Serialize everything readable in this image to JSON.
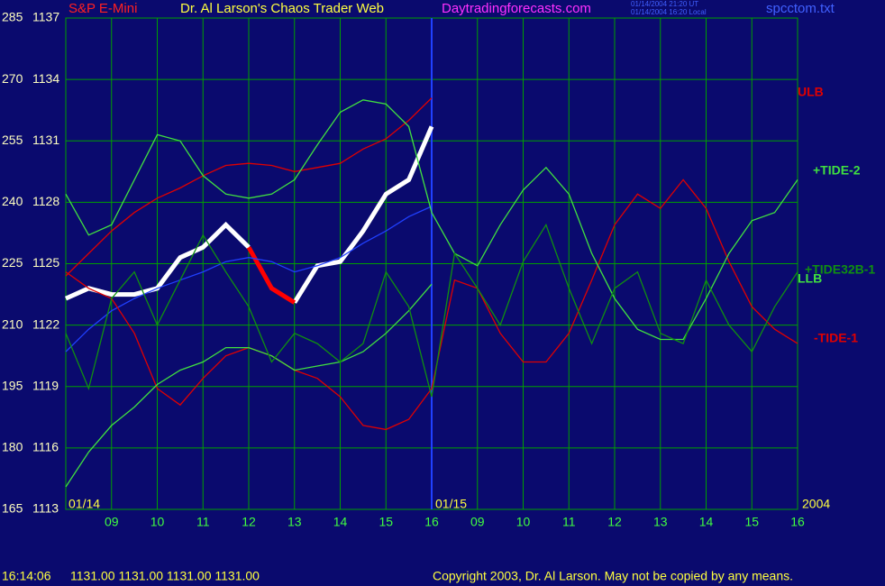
{
  "header": {
    "symbol": "S&P E-Mini",
    "title": "Dr. Al Larson's Chaos Trader Web",
    "site": "Daytradingforecasts.com",
    "time_ut": "01/14/2004 21:20 UT",
    "time_local": "01/14/2004 16:20 Local",
    "file": "spcctom.txt"
  },
  "chart_data": {
    "type": "line",
    "x": [
      0,
      0.5,
      1,
      1.5,
      2,
      2.5,
      3,
      3.5,
      4,
      4.5,
      5,
      5.5,
      6,
      6.5,
      7,
      7.5,
      8,
      8.5,
      9,
      9.5,
      10,
      10.5,
      11,
      11.5,
      12,
      12.5,
      13,
      13.5,
      14,
      14.5,
      15,
      15.5,
      16
    ],
    "series": [
      {
        "color": "#ffffff",
        "values": [
          1123.3,
          1123.8,
          1123.5,
          1123.5,
          1123.8,
          1125.3,
          1125.8,
          1126.9,
          1125.8,
          null,
          1123.1,
          1124.9,
          1125.1,
          1126.6,
          1128.4,
          1129.1,
          1131.7,
          null,
          null,
          null,
          null,
          null,
          null,
          null,
          null,
          null,
          null,
          null,
          null,
          null,
          null,
          null,
          null
        ]
      },
      {
        "color": "#ff0000",
        "values": [
          null,
          null,
          null,
          null,
          null,
          null,
          null,
          null,
          1125.8,
          1123.8,
          1123.1,
          null,
          null,
          null,
          null,
          null,
          null,
          null,
          null,
          null,
          null,
          null,
          null,
          null,
          null,
          null,
          null,
          null,
          null,
          null,
          null,
          null,
          null
        ]
      },
      {
        "color": "#2040ff",
        "values": [
          1120.7,
          1121.8,
          1122.7,
          1123.3,
          1123.8,
          1124.2,
          1124.6,
          1125.1,
          1125.3,
          1125.1,
          1124.6,
          1124.9,
          1125.3,
          1126.0,
          1126.6,
          1127.3,
          1127.8,
          null,
          null,
          null,
          null,
          null,
          null,
          null,
          null,
          null,
          null,
          null,
          null,
          null,
          null,
          null,
          null
        ]
      },
      {
        "name": "ULB",
        "color": "#e00000",
        "values": [
          1124.4,
          1125.5,
          1126.6,
          1127.5,
          1128.2,
          1128.7,
          1129.3,
          1129.8,
          1129.9,
          1129.8,
          1129.5,
          1129.7,
          1129.9,
          1130.6,
          1131.1,
          1132.0,
          1133.1,
          null,
          null,
          null,
          null,
          null,
          null,
          null,
          null,
          null,
          null,
          null,
          null,
          null,
          null,
          null,
          null
        ]
      },
      {
        "name": "-TIDE-1",
        "color": "#e00000",
        "values": [
          1124.6,
          1123.8,
          1123.3,
          1121.6,
          1118.9,
          1118.1,
          1119.4,
          1120.5,
          1120.9,
          1120.5,
          1119.8,
          1119.4,
          1118.5,
          1117.1,
          1116.9,
          1117.4,
          1118.9,
          1124.2,
          1123.8,
          1121.6,
          1120.2,
          1120.2,
          1121.6,
          1124.2,
          1126.9,
          1128.4,
          1127.7,
          1129.1,
          1127.7,
          1125.1,
          1122.9,
          1121.8,
          1121.1
        ]
      },
      {
        "name": "+TIDE-2",
        "color": "#40e040",
        "values": [
          1128.4,
          1126.4,
          1126.9,
          1129.1,
          1131.3,
          1131.0,
          1129.3,
          1128.4,
          1128.2,
          1128.4,
          1129.1,
          1130.8,
          1132.4,
          1133.0,
          1132.8,
          1131.7,
          1127.5,
          1125.5,
          1124.9,
          1126.9,
          1128.6,
          1129.7,
          1128.4,
          1125.5,
          1123.3,
          1121.8,
          1121.3,
          1121.3,
          1123.3,
          1125.5,
          1127.1,
          1127.5,
          1129.1
        ]
      },
      {
        "name": "LLB",
        "color": "#40e040",
        "values": [
          1114.1,
          1115.8,
          1117.1,
          1118.0,
          1119.1,
          1119.8,
          1120.2,
          1120.9,
          1120.9,
          1120.5,
          1119.8,
          1120.0,
          1120.2,
          1120.7,
          1121.6,
          1122.7,
          1124.0,
          null,
          null,
          null,
          null,
          null,
          null,
          null,
          null,
          null,
          null,
          null,
          null,
          null,
          null,
          null,
          null
        ]
      },
      {
        "name": "+TIDE32B-1",
        "color": "#109010",
        "values": [
          1121.6,
          1118.9,
          1123.3,
          1124.6,
          1122.0,
          1124.2,
          1126.4,
          1124.6,
          1122.9,
          1120.2,
          1121.6,
          1121.1,
          1120.2,
          1121.1,
          1124.6,
          1122.9,
          1118.5,
          1125.5,
          1123.8,
          1122.0,
          1125.1,
          1126.9,
          1123.8,
          1121.1,
          1123.8,
          1124.6,
          1121.6,
          1121.1,
          1124.2,
          1122.0,
          1120.7,
          1122.9,
          1124.6
        ]
      }
    ],
    "xlim": [
      0,
      16
    ],
    "xticks": [
      {
        "value": 1,
        "label": "09"
      },
      {
        "value": 2,
        "label": "10"
      },
      {
        "value": 3,
        "label": "11"
      },
      {
        "value": 4,
        "label": "12"
      },
      {
        "value": 5,
        "label": "13"
      },
      {
        "value": 6,
        "label": "14"
      },
      {
        "value": 7,
        "label": "15"
      },
      {
        "value": 8,
        "label": "16"
      },
      {
        "value": 9,
        "label": "09"
      },
      {
        "value": 10,
        "label": "10"
      },
      {
        "value": 11,
        "label": "11"
      },
      {
        "value": 12,
        "label": "12"
      },
      {
        "value": 13,
        "label": "13"
      },
      {
        "value": 14,
        "label": "14"
      },
      {
        "value": 15,
        "label": "15"
      },
      {
        "value": 16,
        "label": "16"
      }
    ],
    "ylim": [
      1113,
      1137
    ],
    "yticks": [
      1113,
      1116,
      1119,
      1122,
      1125,
      1128,
      1131,
      1134,
      1137
    ],
    "y2lim": [
      165,
      285
    ],
    "y2ticks": [
      165,
      180,
      195,
      210,
      225,
      240,
      255,
      270,
      285
    ],
    "date_labels": [
      "01/14",
      "01/15",
      "2004"
    ],
    "grid": true,
    "grid_color": "#00a000"
  },
  "footer": {
    "time": "16:14:06",
    "ohlc": "1131.00 1131.00 1131.00 1131.00",
    "copyright": "Copyright 2003, Dr. Al Larson. May not be copied by any means."
  }
}
